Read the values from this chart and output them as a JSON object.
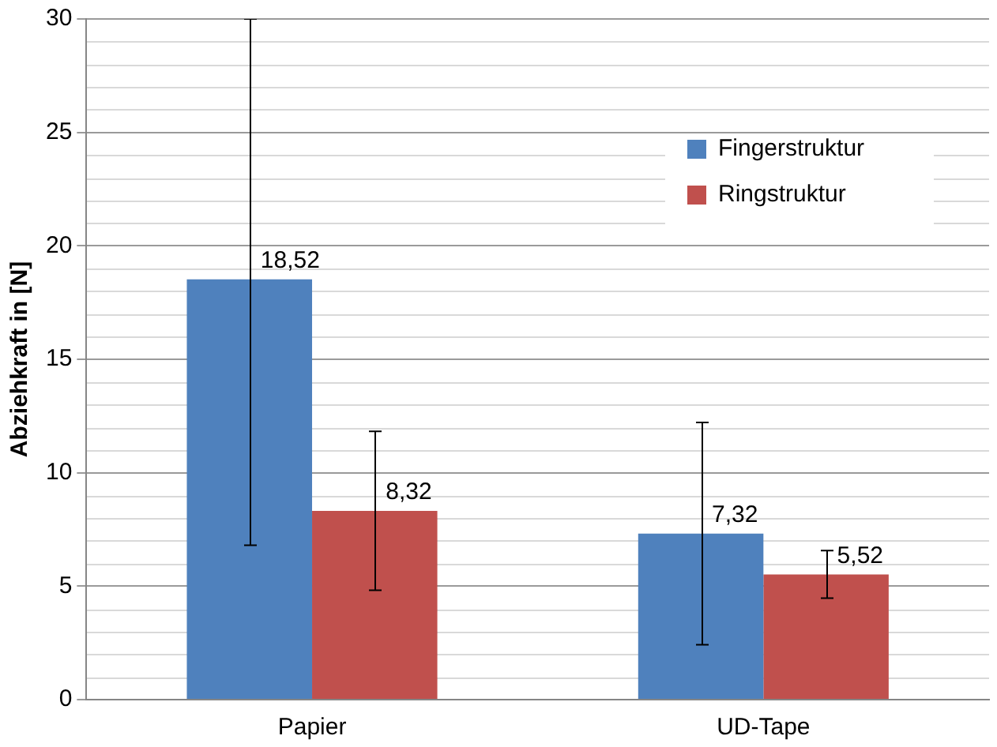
{
  "chart_data": {
    "type": "bar",
    "ylabel": "Abziehkraft in [N]",
    "categories": [
      "Papier",
      "UD-Tape"
    ],
    "series": [
      {
        "name": "Fingerstruktur",
        "color": "#4f81bd",
        "values": [
          18.52,
          7.32
        ],
        "errors": [
          [
            6.8,
            30
          ],
          4.9
        ]
      },
      {
        "name": "Ringstruktur",
        "color": "#c0504d",
        "values": [
          8.32,
          5.52
        ],
        "errors": [
          3.5,
          1.05
        ]
      }
    ],
    "value_labels": [
      [
        "18,52",
        "7,32"
      ],
      [
        "8,32",
        "5,52"
      ]
    ],
    "ylim": [
      0,
      30
    ],
    "yticks": [
      0,
      5,
      10,
      15,
      20,
      25,
      30
    ],
    "grid": "y",
    "legend": "top right"
  }
}
